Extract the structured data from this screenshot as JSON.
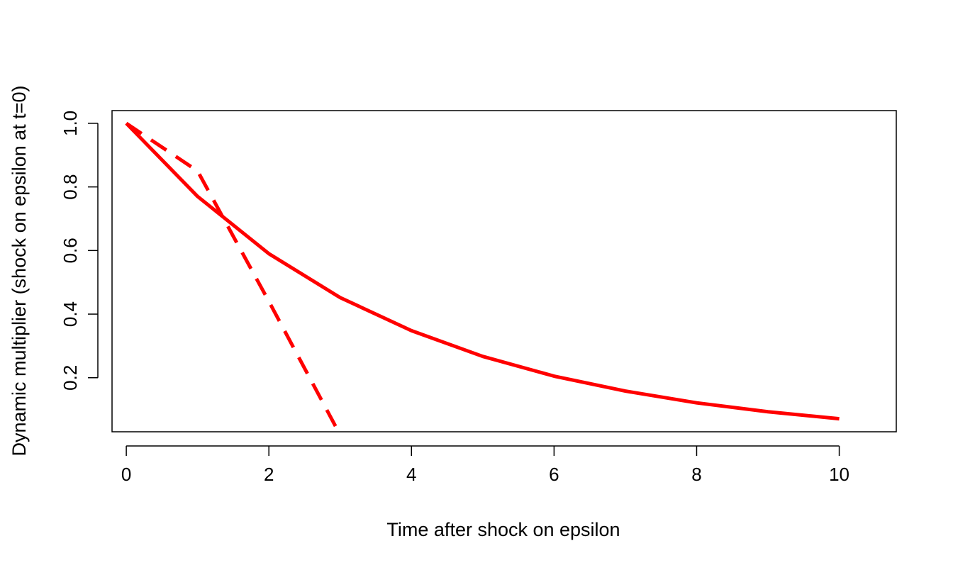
{
  "chart_data": {
    "type": "line",
    "title": "",
    "xlabel": "Time after shock on epsilon",
    "ylabel": "Dynamic multiplier (shock on epsilon at t=0)",
    "xlim": [
      -0.2,
      10.8
    ],
    "ylim": [
      0.03,
      1.04
    ],
    "x_ticks": [
      0,
      2,
      4,
      6,
      8,
      10
    ],
    "x_tick_labels": [
      "0",
      "2",
      "4",
      "6",
      "8",
      "10"
    ],
    "y_ticks": [
      0.2,
      0.4,
      0.6,
      0.8,
      1.0
    ],
    "y_tick_labels": [
      "0.2",
      "0.4",
      "0.6",
      "0.8",
      "1.0"
    ],
    "grid": false,
    "legend": "none",
    "series": [
      {
        "line_style": "solid",
        "color": "#ff0000",
        "x": [
          0,
          1,
          2,
          3,
          4,
          5,
          6,
          7,
          8,
          9,
          10
        ],
        "y": [
          1.0,
          0.77,
          0.59,
          0.452,
          0.348,
          0.267,
          0.205,
          0.158,
          0.121,
          0.093,
          0.071
        ]
      },
      {
        "line_style": "dashed",
        "color": "#ff0000",
        "x": [
          0,
          1,
          2,
          3
        ],
        "y": [
          1.0,
          0.85,
          0.44,
          0.02
        ]
      }
    ]
  }
}
